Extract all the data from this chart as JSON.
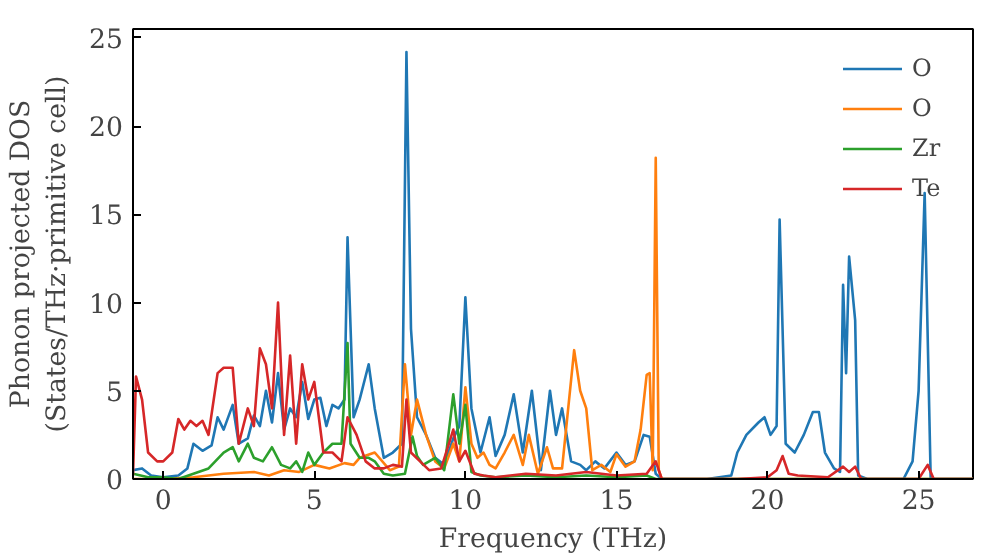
{
  "chart_data": {
    "type": "line",
    "xlabel": "Frequency (THz)",
    "ylabel": "Phonon projected DOS\n(States/THz·primitive cell)",
    "xlim": [
      -1,
      26.8
    ],
    "ylim": [
      0,
      25.5
    ],
    "xticks": [
      0,
      5,
      10,
      15,
      20,
      25
    ],
    "yticks": [
      0,
      5,
      10,
      15,
      20,
      25
    ],
    "grid": false,
    "legend": "top right",
    "series": [
      {
        "name": "O",
        "color": "#1f77b4",
        "x": [
          -1,
          -0.7,
          -0.4,
          0,
          0.5,
          0.8,
          1.0,
          1.3,
          1.6,
          1.8,
          2.0,
          2.3,
          2.5,
          2.8,
          3.0,
          3.2,
          3.4,
          3.6,
          3.8,
          4.0,
          4.2,
          4.4,
          4.6,
          4.8,
          5.0,
          5.2,
          5.4,
          5.6,
          5.8,
          6.0,
          6.1,
          6.3,
          6.5,
          6.8,
          7.0,
          7.3,
          7.6,
          7.9,
          8.05,
          8.2,
          8.4,
          8.7,
          9.0,
          9.3,
          9.6,
          9.8,
          10.0,
          10.2,
          10.5,
          10.8,
          11.0,
          11.3,
          11.6,
          11.9,
          12.2,
          12.5,
          12.8,
          13.0,
          13.2,
          13.5,
          13.8,
          14.0,
          14.3,
          14.6,
          15.0,
          15.3,
          15.6,
          15.9,
          16.1,
          16.3,
          16.5,
          18.0,
          18.8,
          19.0,
          19.3,
          19.7,
          19.9,
          20.1,
          20.3,
          20.4,
          20.6,
          20.9,
          21.2,
          21.5,
          21.7,
          21.9,
          22.2,
          22.4,
          22.5,
          22.6,
          22.7,
          22.9,
          23.0,
          23.3,
          24.5,
          24.8,
          25.0,
          25.2,
          25.4,
          26.8
        ],
        "values": [
          0.5,
          0.6,
          0.2,
          0.1,
          0.2,
          0.6,
          2.0,
          1.6,
          1.9,
          3.5,
          2.8,
          4.2,
          2.0,
          2.3,
          3.6,
          3.0,
          5.0,
          3.2,
          6.0,
          2.8,
          4.0,
          3.5,
          5.5,
          3.4,
          4.5,
          4.6,
          3.0,
          4.2,
          4.0,
          4.5,
          13.7,
          3.5,
          4.5,
          6.5,
          4.0,
          1.2,
          1.5,
          2.0,
          24.2,
          8.5,
          3.5,
          2.5,
          1.2,
          0.8,
          2.3,
          3.0,
          10.3,
          4.0,
          1.5,
          3.5,
          1.3,
          2.5,
          4.8,
          1.5,
          5.0,
          0.5,
          5.0,
          2.5,
          4.0,
          1.0,
          0.8,
          0.5,
          1.0,
          0.6,
          1.5,
          0.8,
          1.0,
          2.5,
          2.4,
          0.3,
          0,
          0,
          0.2,
          1.5,
          2.5,
          3.2,
          3.5,
          2.5,
          3.0,
          14.7,
          2.0,
          1.5,
          2.5,
          3.8,
          3.8,
          1.5,
          0.6,
          0.4,
          11,
          6,
          12.6,
          9,
          0.2,
          0,
          0,
          1,
          5,
          16.2,
          0,
          0
        ]
      },
      {
        "name": "O",
        "color": "#ff7f0e",
        "x": [
          -1,
          0,
          1,
          2,
          3,
          3.5,
          4,
          4.5,
          5,
          5.5,
          6,
          6.3,
          6.5,
          7,
          7.5,
          7.8,
          8.0,
          8.2,
          8.4,
          8.7,
          9.0,
          9.3,
          9.6,
          9.8,
          10.0,
          10.2,
          10.4,
          10.6,
          10.8,
          11.0,
          11.3,
          11.6,
          11.9,
          12.1,
          12.4,
          12.7,
          12.9,
          13.2,
          13.6,
          13.8,
          14.0,
          14.2,
          14.5,
          14.8,
          15.0,
          15.3,
          15.6,
          15.8,
          16.0,
          16.1,
          16.2,
          16.3,
          16.4,
          16.5,
          26.8
        ],
        "values": [
          0,
          0,
          0.1,
          0.3,
          0.4,
          0.2,
          0.5,
          0.4,
          0.8,
          0.6,
          0.9,
          0.8,
          1.2,
          1.5,
          0.5,
          0.7,
          6.5,
          2.5,
          4.5,
          2.5,
          1.0,
          0.6,
          2.0,
          1.0,
          5.2,
          2.0,
          1.2,
          1.5,
          0.8,
          0.6,
          1.5,
          2.5,
          0.8,
          2.5,
          0.3,
          1.8,
          0.6,
          0.6,
          7.3,
          5.0,
          4.0,
          0.5,
          0.8,
          0.4,
          1.4,
          0.7,
          1.0,
          2.8,
          5.9,
          6.0,
          0.5,
          18.2,
          0.5,
          0,
          0
        ]
      },
      {
        "name": "Zr",
        "color": "#2ca02c",
        "x": [
          -1,
          -0.5,
          0,
          0.5,
          1,
          1.5,
          2,
          2.3,
          2.5,
          2.8,
          3,
          3.3,
          3.6,
          3.9,
          4.2,
          4.4,
          4.6,
          4.8,
          5.0,
          5.3,
          5.6,
          5.9,
          6.1,
          6.2,
          6.5,
          6.8,
          7.0,
          7.3,
          7.6,
          8.0,
          8.25,
          8.4,
          8.6,
          9.0,
          9.3,
          9.6,
          9.8,
          10.0,
          10.2,
          10.5,
          11,
          12,
          13,
          14,
          15,
          16,
          16.3,
          26.8
        ],
        "values": [
          0.3,
          0.1,
          0.1,
          0,
          0.3,
          0.6,
          1.5,
          1.8,
          1.0,
          2.0,
          1.2,
          1.0,
          1.8,
          0.8,
          0.6,
          1.0,
          0.4,
          1.5,
          0.8,
          1.5,
          2.0,
          2.0,
          7.7,
          2.0,
          1.2,
          1.2,
          1.0,
          0.3,
          0.2,
          0.3,
          2.4,
          1.3,
          0.8,
          1.2,
          0.5,
          4.8,
          2.0,
          4.2,
          0.4,
          0.2,
          0.1,
          0.2,
          0.1,
          0.2,
          0.1,
          0.2,
          0,
          0
        ]
      },
      {
        "name": "Te",
        "color": "#d62728",
        "x": [
          -1,
          -0.9,
          -0.7,
          -0.5,
          -0.2,
          0,
          0.3,
          0.5,
          0.7,
          0.9,
          1.1,
          1.3,
          1.5,
          1.8,
          2.0,
          2.3,
          2.5,
          2.8,
          3.0,
          3.2,
          3.4,
          3.6,
          3.8,
          4.0,
          4.2,
          4.4,
          4.6,
          4.8,
          5.0,
          5.3,
          5.6,
          5.9,
          6.1,
          6.4,
          6.7,
          7.0,
          7.3,
          7.6,
          7.9,
          8.05,
          8.2,
          8.5,
          8.8,
          9.2,
          9.6,
          9.8,
          10.0,
          10.3,
          10.6,
          11,
          12,
          13,
          14,
          15,
          16,
          16.3,
          16.5,
          19,
          20,
          20.3,
          20.5,
          20.7,
          21,
          22,
          22.5,
          22.7,
          22.9,
          23.1,
          25,
          25.3,
          25.5,
          26.8
        ],
        "values": [
          0.2,
          5.8,
          4.5,
          1.5,
          1.0,
          1.0,
          1.5,
          3.4,
          2.8,
          3.3,
          3.0,
          3.3,
          2.5,
          6.0,
          6.3,
          6.3,
          2.0,
          4.0,
          3.0,
          7.4,
          6.5,
          4.0,
          10.0,
          2.5,
          7.0,
          2.0,
          6.5,
          4.5,
          5.5,
          1.5,
          1.5,
          1.0,
          3.5,
          2.5,
          1.0,
          0.6,
          0.6,
          0.8,
          0.7,
          4.5,
          1.5,
          1.0,
          0.5,
          0.6,
          2.8,
          1.0,
          1.6,
          0.3,
          0.2,
          0.1,
          0.3,
          0.2,
          0.4,
          0.2,
          0.3,
          1.0,
          0,
          0,
          0.1,
          0.5,
          1.3,
          0.3,
          0.2,
          0.1,
          0.7,
          0.4,
          0.7,
          0,
          0,
          0.8,
          0,
          0
        ]
      }
    ]
  }
}
